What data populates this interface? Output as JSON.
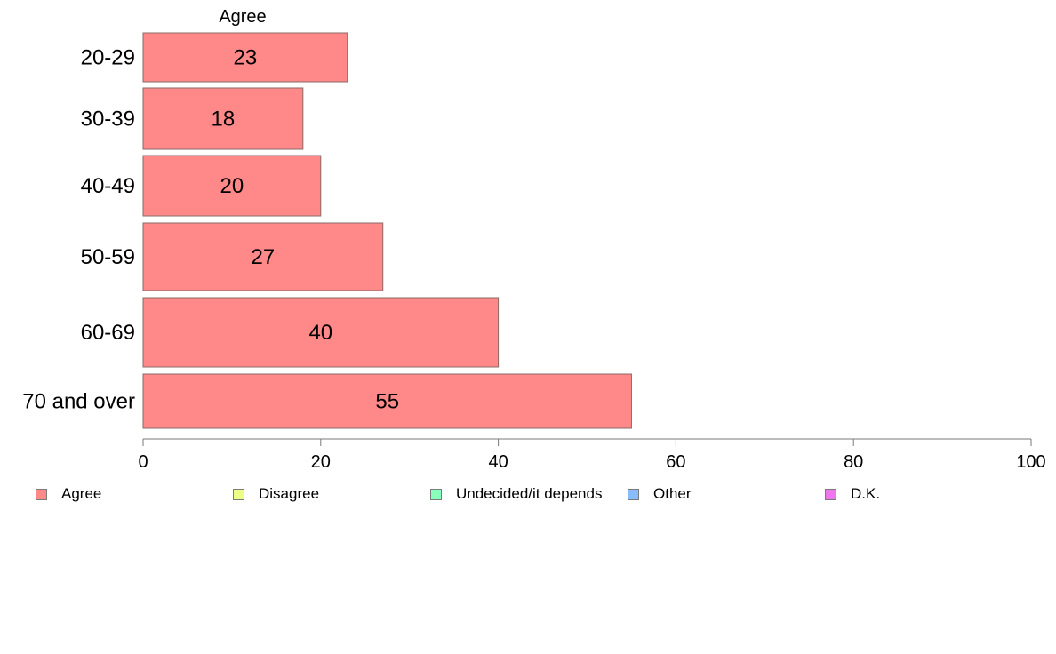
{
  "chart_data": {
    "type": "bar",
    "orientation": "horizontal",
    "series_title": "Agree",
    "categories": [
      "20-29",
      "30-39",
      "40-49",
      "50-59",
      "60-69",
      "70 and over"
    ],
    "series": [
      {
        "name": "Agree",
        "values": [
          23,
          18,
          20,
          27,
          40,
          55
        ],
        "labels": [
          "23",
          "18",
          "20",
          "27",
          "40",
          "55"
        ],
        "color": "#ff8888"
      }
    ],
    "xlim": [
      0,
      100
    ],
    "xticks": [
      0,
      20,
      40,
      60,
      80,
      100
    ],
    "xtick_labels": [
      "0",
      "20",
      "40",
      "60",
      "80",
      "100"
    ],
    "grid": false,
    "legend_position": "bottom",
    "legend": [
      {
        "label": "Agree",
        "color": "#ff8888"
      },
      {
        "label": "Disagree",
        "color": "#eeff88"
      },
      {
        "label": "Undecided/it depends",
        "color": "#88ffbb"
      },
      {
        "label": "Other",
        "color": "#88bbff"
      },
      {
        "label": "D.K.",
        "color": "#ee77ee"
      }
    ]
  }
}
